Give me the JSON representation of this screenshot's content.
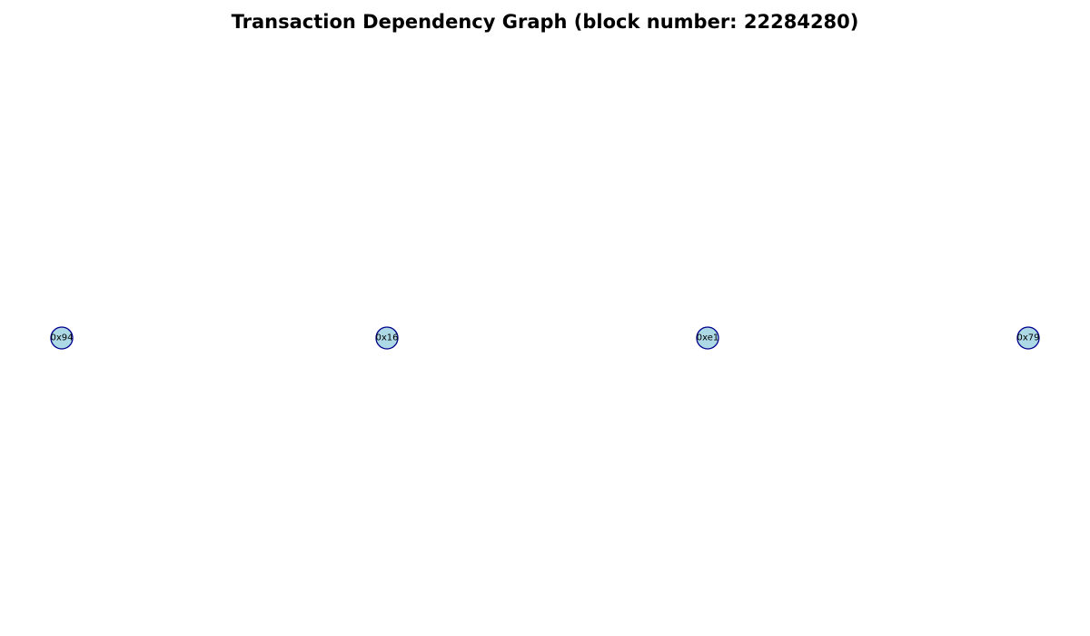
{
  "title": "Transaction Dependency Graph (block number: 22284280)",
  "colors": {
    "node_fill": "#add8e6",
    "node_stroke": "#00008b",
    "background": "#ffffff"
  },
  "graph": {
    "nodes": [
      {
        "id": "0x94",
        "label": "0x94"
      },
      {
        "id": "0x16",
        "label": "0x16"
      },
      {
        "id": "0xe1",
        "label": "0xe1"
      },
      {
        "id": "0x79",
        "label": "0x79"
      }
    ],
    "edges": []
  }
}
